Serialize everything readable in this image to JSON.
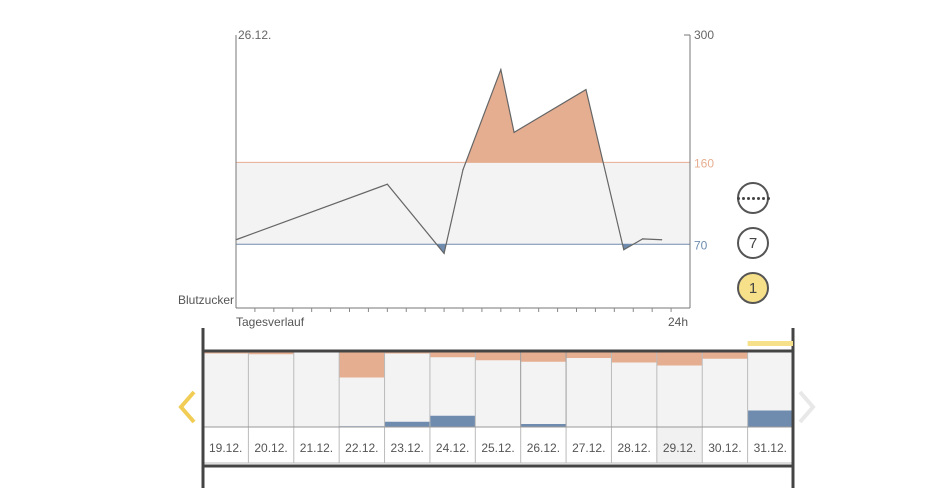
{
  "chart_data": [
    {
      "type": "area",
      "date_label": "26.12.",
      "ylabel": "Blutzucker",
      "xlabel": "Tagesverlauf",
      "x_end_label": "24h",
      "ylim": [
        0,
        300
      ],
      "y_max_label": "300",
      "xlim": [
        0,
        24
      ],
      "upper_threshold": 160,
      "lower_threshold": 70,
      "upper_threshold_label": "160",
      "lower_threshold_label": "70",
      "x": [
        0,
        8,
        11,
        12,
        14,
        14.7,
        18.5,
        20.5,
        21.5,
        22.5
      ],
      "values": [
        75,
        136,
        60,
        152,
        262,
        193,
        240,
        64,
        76,
        75
      ],
      "colors": {
        "high": "#e6ae91",
        "low": "#6f8caf",
        "range": "#f3f3f3",
        "upper_line": "#e6ae91",
        "lower_line": "#6f8caf",
        "line": "#666666"
      }
    },
    {
      "type": "bar",
      "categories": [
        "19.12.",
        "20.12.",
        "21.12.",
        "22.12.",
        "23.12.",
        "24.12.",
        "25.12.",
        "26.12.",
        "27.12.",
        "28.12.",
        "29.12.",
        "30.12.",
        "31.12."
      ],
      "high_share": [
        0.02,
        0.03,
        0.0,
        0.34,
        0.02,
        0.07,
        0.11,
        0.13,
        0.08,
        0.14,
        0.18,
        0.09,
        0.0
      ],
      "low_share": [
        0.0,
        0.0,
        0.0,
        0.01,
        0.07,
        0.15,
        0.0,
        0.04,
        0.0,
        0.0,
        0.0,
        0.0,
        0.22
      ],
      "selected": "26.12.",
      "highlighted": "29.12.",
      "current": "31.12."
    }
  ],
  "controls": {
    "view_buttons": [
      {
        "label": "",
        "icon": "dotted-line-icon"
      },
      {
        "label": "7"
      },
      {
        "label": "1",
        "active": true
      }
    ],
    "nav": {
      "prev_icon": "chevron-left-icon",
      "next_icon": "chevron-right-icon"
    }
  }
}
